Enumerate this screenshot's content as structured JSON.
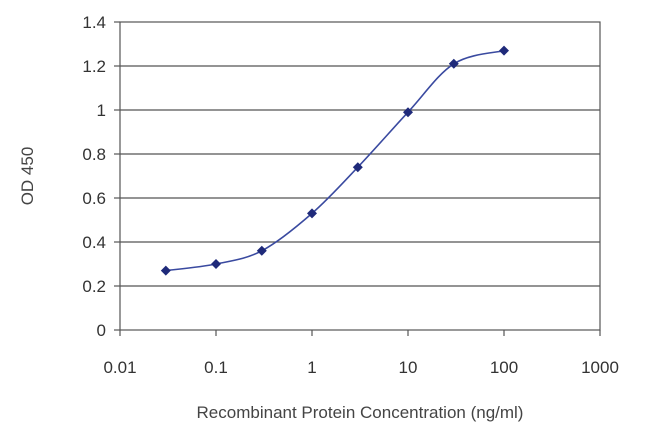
{
  "chart_data": {
    "type": "line",
    "xscale": "log",
    "xlabel": "Recombinant Protein Concentration (ng/ml)",
    "ylabel": "OD 450",
    "xlim": [
      0.01,
      1000
    ],
    "ylim": [
      0,
      1.4
    ],
    "x_ticks": [
      0.01,
      0.1,
      1,
      10,
      100,
      1000
    ],
    "x_tick_labels": [
      "0.01",
      "0.1",
      "1",
      "10",
      "100",
      "1000"
    ],
    "y_ticks": [
      0,
      0.2,
      0.4,
      0.6,
      0.8,
      1,
      1.2,
      1.4
    ],
    "y_tick_labels": [
      "0",
      "0.2",
      "0.4",
      "0.6",
      "0.8",
      "1",
      "1.2",
      "1.4"
    ],
    "grid": "horizontal",
    "series": [
      {
        "x": [
          0.03,
          0.1,
          0.3,
          1,
          3,
          10,
          30,
          100
        ],
        "y": [
          0.27,
          0.3,
          0.36,
          0.53,
          0.74,
          0.99,
          1.21,
          1.27
        ],
        "color": "#1f2a7a"
      }
    ]
  }
}
